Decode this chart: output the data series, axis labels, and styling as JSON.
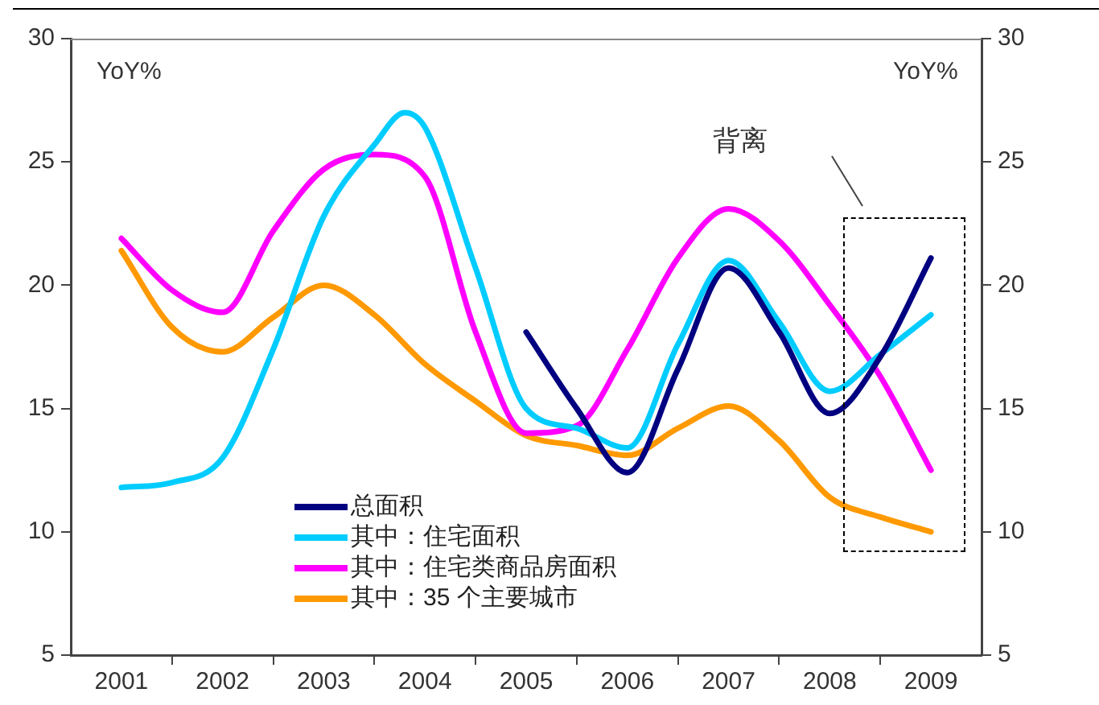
{
  "chart_data": {
    "type": "line",
    "x": [
      2001,
      2001.5,
      2002,
      2002.5,
      2003,
      2003.5,
      2003.8,
      2004,
      2004.5,
      2005,
      2005.5,
      2006,
      2006.5,
      2007,
      2007.5,
      2008,
      2008.5,
      2009
    ],
    "series": [
      {
        "name": "总面积",
        "color": "#000080",
        "values": [
          null,
          null,
          null,
          null,
          null,
          null,
          null,
          null,
          null,
          18.1,
          15.0,
          12.4,
          16.6,
          20.7,
          18.1,
          14.8,
          17.1,
          21.1
        ]
      },
      {
        "name": "其中：住宅面积",
        "color": "#00ccff",
        "values": [
          11.8,
          12.0,
          13.0,
          17.4,
          22.8,
          25.7,
          27.0,
          26.4,
          20.7,
          15.0,
          14.2,
          13.4,
          17.6,
          21.0,
          18.5,
          15.7,
          17.2,
          18.8
        ]
      },
      {
        "name": "其中：住宅类商品房面积",
        "color": "#ff00ff",
        "values": [
          21.9,
          19.8,
          18.9,
          22.2,
          24.7,
          25.3,
          null,
          24.4,
          18.1,
          14.0,
          14.3,
          17.4,
          21.1,
          23.1,
          21.8,
          19.2,
          16.3,
          12.5
        ]
      },
      {
        "name": "其中：35 个主要城市",
        "color": "#ff9900",
        "values": [
          21.4,
          18.3,
          17.3,
          18.7,
          20.0,
          18.8,
          null,
          16.8,
          15.3,
          13.9,
          13.5,
          13.1,
          14.2,
          15.1,
          13.7,
          11.4,
          10.6,
          10.0
        ]
      }
    ],
    "xlim": [
      2000.5,
      2009.5
    ],
    "xticks": [
      2001,
      {
        "value": 2001.5,
        "label": null
      },
      2002,
      {
        "value": 2002.5,
        "label": null
      },
      2003,
      {
        "value": 2003.5,
        "label": null
      },
      2004,
      {
        "value": 2004.5,
        "label": null
      },
      2005,
      {
        "value": 2005.5,
        "label": null
      },
      2006,
      {
        "value": 2006.5,
        "label": null
      },
      2007,
      {
        "value": 2007.5,
        "label": null
      },
      2008,
      {
        "value": 2008.5,
        "label": null
      },
      2009
    ],
    "ylim": [
      5,
      30
    ],
    "yticks": [
      5,
      10,
      15,
      20,
      25,
      30
    ],
    "y2lim": [
      5,
      30
    ],
    "y2ticks": [
      5,
      10,
      15,
      20,
      25,
      30
    ],
    "annotations": [
      "YoY%",
      "YoY%",
      "背离"
    ],
    "legend": "bottom",
    "grid": false,
    "marker": "none",
    "line_style": "solid"
  }
}
